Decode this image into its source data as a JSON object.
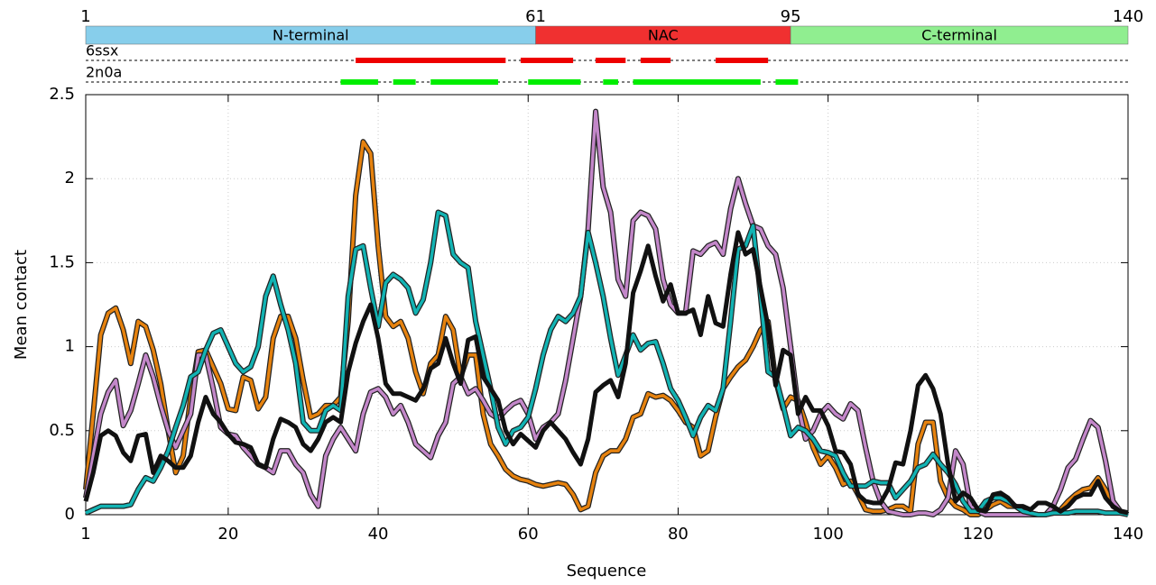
{
  "chart_data": {
    "type": "line",
    "xlabel": "Sequence",
    "ylabel": "Mean contact",
    "xlim": [
      1,
      140
    ],
    "ylim": [
      0,
      2.5
    ],
    "xticks": [
      1,
      20,
      40,
      60,
      80,
      100,
      120,
      140
    ],
    "yticks": [
      0,
      0.5,
      1,
      1.5,
      2,
      2.5
    ],
    "grid": true,
    "domain_ticks": [
      1,
      61,
      95,
      140
    ],
    "domains": [
      {
        "label": "N-terminal",
        "start": 1,
        "end": 61,
        "color": "#87ceeb"
      },
      {
        "label": "NAC",
        "start": 61,
        "end": 95,
        "color": "#f03030"
      },
      {
        "label": "C-terminal",
        "start": 95,
        "end": 140,
        "color": "#90ee90"
      }
    ],
    "tracks": [
      {
        "label": "6ssx",
        "color": "#ee0000",
        "segments": [
          [
            37,
            57
          ],
          [
            59,
            66
          ],
          [
            69,
            73
          ],
          [
            75,
            79
          ],
          [
            85,
            92
          ]
        ]
      },
      {
        "label": "2n0a",
        "color": "#00ee00",
        "segments": [
          [
            35,
            40
          ],
          [
            42,
            45
          ],
          [
            47,
            56
          ],
          [
            60,
            67
          ],
          [
            70,
            72
          ],
          [
            74,
            91
          ],
          [
            93,
            96
          ]
        ]
      }
    ],
    "x": [
      1,
      2,
      3,
      4,
      5,
      6,
      7,
      8,
      9,
      10,
      11,
      12,
      13,
      14,
      15,
      16,
      17,
      18,
      19,
      20,
      21,
      22,
      23,
      24,
      25,
      26,
      27,
      28,
      29,
      30,
      31,
      32,
      33,
      34,
      35,
      36,
      37,
      38,
      39,
      40,
      41,
      42,
      43,
      44,
      45,
      46,
      47,
      48,
      49,
      50,
      51,
      52,
      53,
      54,
      55,
      56,
      57,
      58,
      59,
      60,
      61,
      62,
      63,
      64,
      65,
      66,
      67,
      68,
      69,
      70,
      71,
      72,
      73,
      74,
      75,
      76,
      77,
      78,
      79,
      80,
      81,
      82,
      83,
      84,
      85,
      86,
      87,
      88,
      89,
      90,
      91,
      92,
      93,
      94,
      95,
      96,
      97,
      98,
      99,
      100,
      101,
      102,
      103,
      104,
      105,
      106,
      107,
      108,
      109,
      110,
      111,
      112,
      113,
      114,
      115,
      116,
      117,
      118,
      119,
      120,
      121,
      122,
      123,
      124,
      125,
      126,
      127,
      128,
      129,
      130,
      131,
      132,
      133,
      134,
      135,
      136,
      137,
      138,
      139,
      140
    ],
    "series": [
      {
        "color": "#e6820e",
        "values": [
          0.15,
          0.6,
          1.07,
          1.2,
          1.23,
          1.1,
          0.9,
          1.15,
          1.12,
          0.98,
          0.78,
          0.5,
          0.25,
          0.35,
          0.7,
          0.97,
          0.98,
          0.88,
          0.78,
          0.63,
          0.62,
          0.82,
          0.8,
          0.63,
          0.7,
          1.05,
          1.18,
          1.18,
          1.05,
          0.8,
          0.58,
          0.6,
          0.65,
          0.65,
          0.7,
          1.15,
          1.9,
          2.22,
          2.15,
          1.6,
          1.18,
          1.12,
          1.15,
          1.05,
          0.85,
          0.72,
          0.9,
          0.95,
          1.18,
          1.1,
          0.82,
          0.95,
          0.95,
          0.6,
          0.42,
          0.35,
          0.27,
          0.23,
          0.21,
          0.2,
          0.18,
          0.17,
          0.18,
          0.19,
          0.18,
          0.12,
          0.03,
          0.05,
          0.25,
          0.35,
          0.38,
          0.38,
          0.45,
          0.58,
          0.6,
          0.72,
          0.7,
          0.71,
          0.68,
          0.62,
          0.55,
          0.52,
          0.35,
          0.38,
          0.58,
          0.75,
          0.82,
          0.88,
          0.92,
          1.0,
          1.1,
          1.15,
          0.8,
          0.63,
          0.7,
          0.68,
          0.55,
          0.4,
          0.3,
          0.35,
          0.28,
          0.18,
          0.2,
          0.12,
          0.03,
          0.02,
          0.02,
          0.03,
          0.05,
          0.05,
          0.02,
          0.42,
          0.55,
          0.55,
          0.2,
          0.1,
          0.05,
          0.03,
          0,
          0,
          0.03,
          0.06,
          0.08,
          0.05,
          0.05,
          0.02,
          0.01,
          0,
          0,
          0.01,
          0.03,
          0.08,
          0.12,
          0.15,
          0.16,
          0.22,
          0.15,
          0.05,
          0.02,
          0.01
        ]
      },
      {
        "color": "#c387c9",
        "values": [
          0.1,
          0.35,
          0.6,
          0.73,
          0.8,
          0.53,
          0.62,
          0.78,
          0.95,
          0.82,
          0.65,
          0.5,
          0.4,
          0.5,
          0.6,
          0.95,
          0.95,
          0.75,
          0.52,
          0.48,
          0.47,
          0.4,
          0.35,
          0.3,
          0.28,
          0.25,
          0.38,
          0.38,
          0.3,
          0.25,
          0.12,
          0.05,
          0.35,
          0.45,
          0.52,
          0.45,
          0.38,
          0.6,
          0.73,
          0.75,
          0.7,
          0.6,
          0.65,
          0.55,
          0.42,
          0.38,
          0.34,
          0.47,
          0.55,
          0.78,
          0.82,
          0.72,
          0.75,
          0.68,
          0.6,
          0.57,
          0.62,
          0.66,
          0.68,
          0.6,
          0.45,
          0.52,
          0.55,
          0.6,
          0.8,
          1.05,
          1.3,
          1.7,
          2.4,
          1.95,
          1.8,
          1.4,
          1.3,
          1.75,
          1.8,
          1.78,
          1.7,
          1.4,
          1.25,
          1.2,
          1.2,
          1.57,
          1.55,
          1.6,
          1.62,
          1.55,
          1.82,
          2.0,
          1.85,
          1.72,
          1.7,
          1.6,
          1.55,
          1.35,
          1.0,
          0.65,
          0.45,
          0.5,
          0.6,
          0.65,
          0.6,
          0.57,
          0.66,
          0.62,
          0.4,
          0.2,
          0.08,
          0.02,
          0.01,
          0,
          0,
          0.01,
          0.01,
          0,
          0.03,
          0.1,
          0.38,
          0.3,
          0.05,
          0.02,
          0,
          0,
          0,
          0,
          0,
          0,
          0,
          0,
          0,
          0.05,
          0.15,
          0.28,
          0.33,
          0.45,
          0.56,
          0.52,
          0.32,
          0.08,
          0.02,
          0
        ]
      },
      {
        "color": "#12b3b3",
        "values": [
          0.01,
          0.03,
          0.05,
          0.05,
          0.05,
          0.05,
          0.06,
          0.15,
          0.22,
          0.2,
          0.28,
          0.38,
          0.52,
          0.65,
          0.82,
          0.85,
          0.98,
          1.08,
          1.1,
          1.0,
          0.9,
          0.85,
          0.88,
          1.0,
          1.3,
          1.42,
          1.25,
          1.1,
          0.9,
          0.55,
          0.5,
          0.5,
          0.62,
          0.65,
          0.62,
          1.3,
          1.58,
          1.6,
          1.35,
          1.12,
          1.38,
          1.43,
          1.4,
          1.35,
          1.2,
          1.28,
          1.5,
          1.8,
          1.78,
          1.55,
          1.5,
          1.47,
          1.15,
          0.95,
          0.75,
          0.52,
          0.42,
          0.5,
          0.52,
          0.58,
          0.75,
          0.95,
          1.1,
          1.18,
          1.15,
          1.2,
          1.3,
          1.68,
          1.5,
          1.3,
          1.05,
          0.83,
          0.95,
          1.07,
          0.98,
          1.02,
          1.03,
          0.9,
          0.75,
          0.68,
          0.58,
          0.47,
          0.58,
          0.65,
          0.62,
          0.75,
          1.15,
          1.58,
          1.6,
          1.72,
          1.3,
          0.85,
          0.82,
          0.65,
          0.47,
          0.52,
          0.5,
          0.45,
          0.38,
          0.37,
          0.35,
          0.25,
          0.17,
          0.17,
          0.17,
          0.2,
          0.19,
          0.19,
          0.1,
          0.15,
          0.2,
          0.28,
          0.3,
          0.36,
          0.3,
          0.25,
          0.18,
          0.08,
          0.02,
          0.02,
          0.08,
          0.1,
          0.1,
          0.08,
          0.05,
          0.02,
          0.01,
          0,
          0,
          0.01,
          0.01,
          0.01,
          0.02,
          0.02,
          0.02,
          0.02,
          0.01,
          0.01,
          0.01,
          0
        ]
      },
      {
        "color": "#111111",
        "values": [
          0.08,
          0.25,
          0.47,
          0.5,
          0.47,
          0.37,
          0.32,
          0.47,
          0.48,
          0.25,
          0.35,
          0.32,
          0.28,
          0.28,
          0.35,
          0.55,
          0.7,
          0.6,
          0.55,
          0.48,
          0.43,
          0.42,
          0.4,
          0.3,
          0.28,
          0.45,
          0.57,
          0.55,
          0.52,
          0.42,
          0.38,
          0.45,
          0.55,
          0.58,
          0.55,
          0.85,
          1.02,
          1.15,
          1.25,
          1.05,
          0.78,
          0.72,
          0.72,
          0.7,
          0.68,
          0.75,
          0.87,
          0.9,
          1.05,
          0.9,
          0.78,
          1.04,
          1.06,
          0.82,
          0.75,
          0.68,
          0.5,
          0.42,
          0.48,
          0.44,
          0.4,
          0.5,
          0.55,
          0.5,
          0.45,
          0.37,
          0.3,
          0.45,
          0.73,
          0.77,
          0.8,
          0.7,
          0.9,
          1.32,
          1.45,
          1.6,
          1.42,
          1.27,
          1.37,
          1.2,
          1.2,
          1.22,
          1.07,
          1.3,
          1.14,
          1.12,
          1.43,
          1.68,
          1.55,
          1.58,
          1.35,
          1.12,
          0.77,
          0.98,
          0.95,
          0.6,
          0.7,
          0.62,
          0.62,
          0.53,
          0.38,
          0.37,
          0.3,
          0.12,
          0.08,
          0.07,
          0.07,
          0.15,
          0.31,
          0.3,
          0.5,
          0.77,
          0.83,
          0.75,
          0.6,
          0.3,
          0.08,
          0.13,
          0.1,
          0.03,
          0.02,
          0.12,
          0.13,
          0.1,
          0.05,
          0.05,
          0.03,
          0.07,
          0.07,
          0.05,
          0.02,
          0.05,
          0.1,
          0.12,
          0.12,
          0.2,
          0.1,
          0.05,
          0.02,
          0.01
        ]
      }
    ]
  }
}
